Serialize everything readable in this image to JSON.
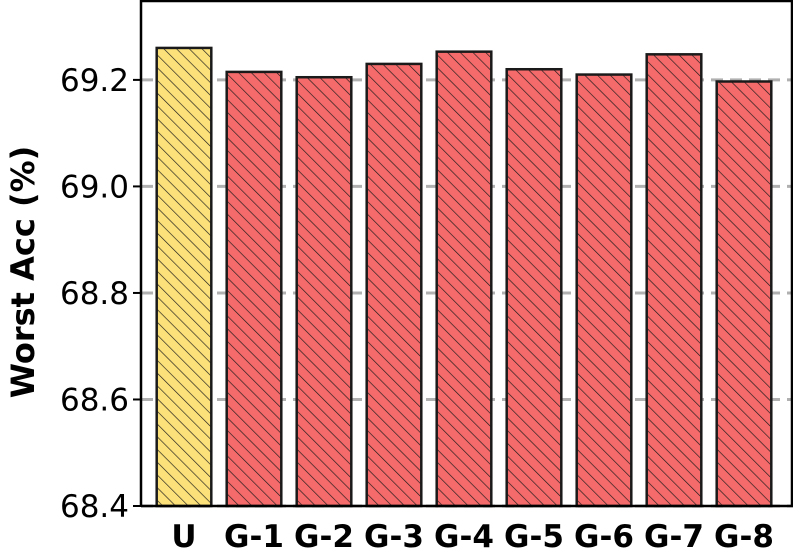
{
  "chart_data": {
    "type": "bar",
    "title": "",
    "xlabel": "",
    "ylabel": "Worst Acc (%)",
    "ylim": [
      68.4,
      69.35
    ],
    "yticks": [
      "68.4",
      "68.6",
      "68.8",
      "69.0",
      "69.2"
    ],
    "grid": "horizontal dashed",
    "categories": [
      "U",
      "G-1",
      "G-2",
      "G-3",
      "G-4",
      "G-5",
      "G-6",
      "G-7",
      "G-8"
    ],
    "values": [
      69.26,
      69.215,
      69.205,
      69.23,
      69.253,
      69.22,
      69.21,
      69.248,
      69.197
    ],
    "bar_colors": [
      "#fce17a",
      "#f56a6a",
      "#f56a6a",
      "#f56a6a",
      "#f56a6a",
      "#f56a6a",
      "#f56a6a",
      "#f56a6a",
      "#f56a6a"
    ],
    "hatch": "diagonal",
    "edge_color": "#1a1a1a",
    "grid_color": "#b0b0b0"
  }
}
